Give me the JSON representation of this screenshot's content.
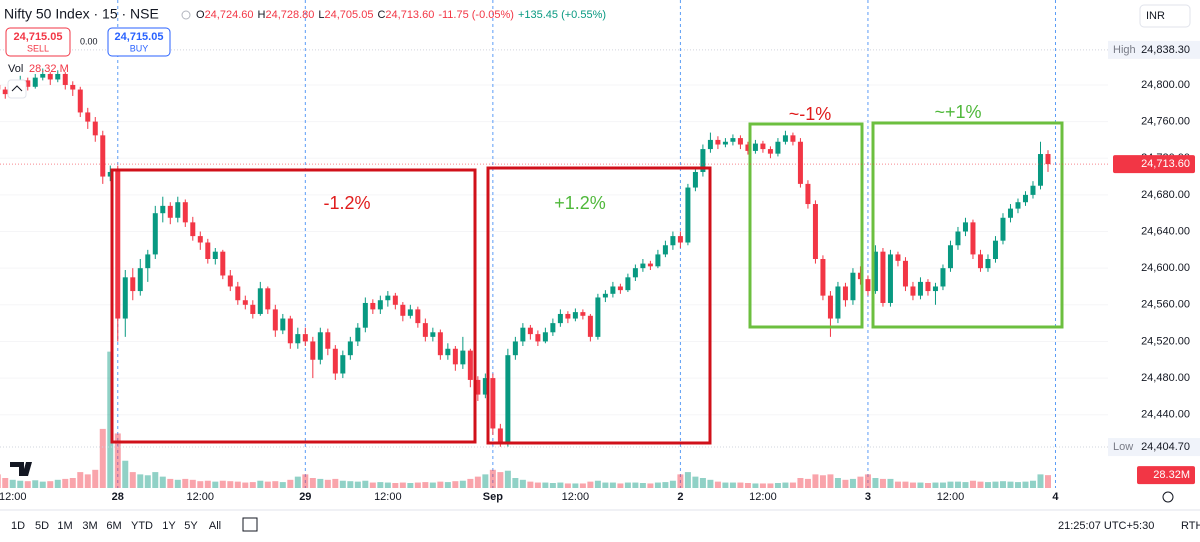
{
  "header": {
    "symbol": "Nifty 50 Index · 15 · NSE",
    "ohlc": [
      {
        "key": "O",
        "value": "24,724.60"
      },
      {
        "key": "H",
        "value": "24,728.80"
      },
      {
        "key": "L",
        "value": "24,705.05"
      },
      {
        "key": "C",
        "value": "24,713.60"
      }
    ],
    "change": "-11.75 (-0.05%)",
    "ext_change": "+135.45 (+0.55%)"
  },
  "trade": {
    "sell_price": "24,715.05",
    "sell_label": "SELL",
    "spread": "0.00",
    "buy_price": "24,715.05",
    "buy_label": "BUY"
  },
  "currency": "INR",
  "volume_legend": {
    "label": "Vol",
    "value": "28.32 M"
  },
  "chart_data": {
    "type": "candlestick",
    "candles": [
      [
        24800,
        24806,
        24790,
        24795,
        30
      ],
      [
        24795,
        24798,
        24785,
        24790,
        22
      ],
      [
        24790,
        24803,
        24788,
        24800,
        18
      ],
      [
        24800,
        24810,
        24796,
        24805,
        16
      ],
      [
        24805,
        24808,
        24794,
        24798,
        15
      ],
      [
        24798,
        24812,
        24796,
        24808,
        17
      ],
      [
        24808,
        24818,
        24805,
        24812,
        14
      ],
      [
        24812,
        24814,
        24800,
        24806,
        15
      ],
      [
        24806,
        24816,
        24803,
        24812,
        18
      ],
      [
        24812,
        24814,
        24795,
        24800,
        20
      ],
      [
        24800,
        24804,
        24788,
        24795,
        22
      ],
      [
        24795,
        24798,
        24765,
        24770,
        35
      ],
      [
        24770,
        24775,
        24752,
        24760,
        30
      ],
      [
        24760,
        24765,
        24738,
        24745,
        40
      ],
      [
        24745,
        24750,
        24692,
        24700,
        130
      ],
      [
        24700,
        24712,
        24695,
        24705,
        300
      ],
      [
        24708,
        24712,
        24520,
        24545,
        120
      ],
      [
        24545,
        24598,
        24525,
        24590,
        60
      ],
      [
        24590,
        24600,
        24565,
        24575,
        35
      ],
      [
        24575,
        24610,
        24570,
        24600,
        30
      ],
      [
        24600,
        24620,
        24585,
        24615,
        28
      ],
      [
        24615,
        24668,
        24610,
        24660,
        35
      ],
      [
        24660,
        24678,
        24650,
        24668,
        25
      ],
      [
        24668,
        24672,
        24648,
        24655,
        20
      ],
      [
        24655,
        24678,
        24650,
        24672,
        18
      ],
      [
        24672,
        24675,
        24645,
        24650,
        20
      ],
      [
        24650,
        24656,
        24630,
        24635,
        18
      ],
      [
        24635,
        24640,
        24620,
        24628,
        15
      ],
      [
        24628,
        24632,
        24605,
        24610,
        16
      ],
      [
        24610,
        24622,
        24604,
        24618,
        14
      ],
      [
        24618,
        24620,
        24588,
        24592,
        16
      ],
      [
        24592,
        24598,
        24575,
        24580,
        15
      ],
      [
        24580,
        24585,
        24560,
        24565,
        14
      ],
      [
        24565,
        24570,
        24555,
        24560,
        12
      ],
      [
        24560,
        24565,
        24545,
        24550,
        13
      ],
      [
        24550,
        24585,
        24548,
        24578,
        16
      ],
      [
        24578,
        24580,
        24550,
        24555,
        14
      ],
      [
        24555,
        24560,
        24525,
        24532,
        15
      ],
      [
        24532,
        24550,
        24528,
        24545,
        13
      ],
      [
        24545,
        24548,
        24512,
        24518,
        18
      ],
      [
        24518,
        24535,
        24512,
        24528,
        25
      ],
      [
        24528,
        24535,
        24515,
        24520,
        30
      ],
      [
        24520,
        24525,
        24480,
        24500,
        22
      ],
      [
        24500,
        24535,
        24495,
        24530,
        20
      ],
      [
        24530,
        24534,
        24505,
        24512,
        18
      ],
      [
        24512,
        24516,
        24478,
        24485,
        20
      ],
      [
        24485,
        24510,
        24480,
        24505,
        16
      ],
      [
        24505,
        24525,
        24500,
        24520,
        15
      ],
      [
        24520,
        24540,
        24515,
        24535,
        14
      ],
      [
        24535,
        24568,
        24530,
        24562,
        16
      ],
      [
        24562,
        24566,
        24550,
        24555,
        12
      ],
      [
        24555,
        24570,
        24550,
        24565,
        13
      ],
      [
        24565,
        24575,
        24558,
        24570,
        12
      ],
      [
        24570,
        24573,
        24555,
        24560,
        11
      ],
      [
        24560,
        24563,
        24542,
        24548,
        12
      ],
      [
        24548,
        24560,
        24545,
        24555,
        11
      ],
      [
        24555,
        24558,
        24535,
        24540,
        12
      ],
      [
        24540,
        24545,
        24520,
        24525,
        13
      ],
      [
        24525,
        24535,
        24520,
        24530,
        12
      ],
      [
        24530,
        24533,
        24500,
        24505,
        14
      ],
      [
        24505,
        24518,
        24500,
        24512,
        13
      ],
      [
        24512,
        24515,
        24488,
        24495,
        15
      ],
      [
        24495,
        24525,
        24490,
        24510,
        16
      ],
      [
        24510,
        24512,
        24470,
        24478,
        20
      ],
      [
        24478,
        24482,
        24455,
        24462,
        25
      ],
      [
        24462,
        24485,
        24458,
        24480,
        30
      ],
      [
        24480,
        24485,
        24418,
        24425,
        40
      ],
      [
        24425,
        24430,
        24405,
        24408,
        35
      ],
      [
        24408,
        24512,
        24405,
        24505,
        38
      ],
      [
        24505,
        24525,
        24500,
        24520,
        22
      ],
      [
        24520,
        24540,
        24515,
        24535,
        18
      ],
      [
        24535,
        24538,
        24522,
        24528,
        14
      ],
      [
        24528,
        24532,
        24515,
        24520,
        12
      ],
      [
        24520,
        24535,
        24518,
        24530,
        12
      ],
      [
        24530,
        24545,
        24526,
        24540,
        11
      ],
      [
        24540,
        24555,
        24536,
        24550,
        12
      ],
      [
        24550,
        24553,
        24540,
        24545,
        10
      ],
      [
        24545,
        24556,
        24542,
        24552,
        10
      ],
      [
        24552,
        24555,
        24544,
        24548,
        10
      ],
      [
        24548,
        24550,
        24520,
        24525,
        14
      ],
      [
        24525,
        24572,
        24522,
        24568,
        16
      ],
      [
        24568,
        24576,
        24563,
        24572,
        12
      ],
      [
        24572,
        24585,
        24568,
        24580,
        12
      ],
      [
        24580,
        24583,
        24572,
        24576,
        10
      ],
      [
        24576,
        24594,
        24574,
        24590,
        12
      ],
      [
        24590,
        24604,
        24586,
        24600,
        12
      ],
      [
        24600,
        24610,
        24596,
        24605,
        11
      ],
      [
        24605,
        24608,
        24598,
        24602,
        10
      ],
      [
        24602,
        24620,
        24600,
        24615,
        12
      ],
      [
        24615,
        24630,
        24612,
        24625,
        13
      ],
      [
        24625,
        24640,
        24620,
        24635,
        16
      ],
      [
        24635,
        24640,
        24622,
        24628,
        30
      ],
      [
        24628,
        24692,
        24625,
        24688,
        35
      ],
      [
        24688,
        24710,
        24684,
        24705,
        25
      ],
      [
        24705,
        24735,
        24700,
        24730,
        22
      ],
      [
        24730,
        24748,
        24726,
        24740,
        18
      ],
      [
        24740,
        24744,
        24730,
        24735,
        14
      ],
      [
        24735,
        24742,
        24732,
        24738,
        12
      ],
      [
        24738,
        24746,
        24734,
        24742,
        12
      ],
      [
        24742,
        24745,
        24730,
        24735,
        12
      ],
      [
        24735,
        24738,
        24724,
        24728,
        11
      ],
      [
        24728,
        24740,
        24725,
        24736,
        10
      ],
      [
        24736,
        24739,
        24726,
        24730,
        10
      ],
      [
        24730,
        24733,
        24720,
        24725,
        10
      ],
      [
        24725,
        24742,
        24722,
        24738,
        11
      ],
      [
        24738,
        24750,
        24735,
        24745,
        12
      ],
      [
        24745,
        24748,
        24734,
        24738,
        12
      ],
      [
        24738,
        24742,
        24688,
        24692,
        22
      ],
      [
        24692,
        24696,
        24665,
        24670,
        20
      ],
      [
        24670,
        24674,
        24605,
        24610,
        30
      ],
      [
        24610,
        24614,
        24565,
        24570,
        28
      ],
      [
        24570,
        24575,
        24525,
        24545,
        30
      ],
      [
        24545,
        24585,
        24540,
        24580,
        22
      ],
      [
        24580,
        24584,
        24558,
        24565,
        18
      ],
      [
        24565,
        24600,
        24560,
        24595,
        20
      ],
      [
        24595,
        24602,
        24582,
        24588,
        25
      ],
      [
        24588,
        24592,
        24570,
        24575,
        30
      ],
      [
        24575,
        24625,
        24572,
        24618,
        22
      ],
      [
        24618,
        24622,
        24558,
        24562,
        20
      ],
      [
        24562,
        24620,
        24558,
        24615,
        20
      ],
      [
        24615,
        24618,
        24602,
        24608,
        14
      ],
      [
        24608,
        24612,
        24575,
        24580,
        14
      ],
      [
        24580,
        24585,
        24565,
        24570,
        12
      ],
      [
        24570,
        24590,
        24566,
        24585,
        12
      ],
      [
        24585,
        24588,
        24570,
        24575,
        11
      ],
      [
        24575,
        24584,
        24560,
        24580,
        12
      ],
      [
        24580,
        24604,
        24576,
        24600,
        12
      ],
      [
        24600,
        24630,
        24596,
        24625,
        14
      ],
      [
        24625,
        24645,
        24620,
        24640,
        14
      ],
      [
        24640,
        24655,
        24635,
        24650,
        13
      ],
      [
        24650,
        24653,
        24610,
        24615,
        16
      ],
      [
        24615,
        24620,
        24596,
        24600,
        14
      ],
      [
        24600,
        24615,
        24596,
        24610,
        13
      ],
      [
        24610,
        24635,
        24606,
        24630,
        14
      ],
      [
        24630,
        24660,
        24626,
        24655,
        15
      ],
      [
        24655,
        24670,
        24650,
        24665,
        14
      ],
      [
        24665,
        24676,
        24660,
        24672,
        13
      ],
      [
        24672,
        24684,
        24668,
        24680,
        14
      ],
      [
        24680,
        24695,
        24676,
        24690,
        16
      ],
      [
        24690,
        24738,
        24686,
        24724.6,
        30
      ],
      [
        24724.6,
        24728.8,
        24705.05,
        24713.6,
        28.32
      ]
    ],
    "xlim": [
      0.3,
      148
    ],
    "xticks": [
      {
        "value": 2,
        "label": "12:00"
      },
      {
        "value": 16,
        "label": "28"
      },
      {
        "value": 27,
        "label": "12:00"
      },
      {
        "value": 41,
        "label": "29"
      },
      {
        "value": 52,
        "label": "12:00"
      },
      {
        "value": 66,
        "label": "Sep"
      },
      {
        "value": 77,
        "label": "12:00"
      },
      {
        "value": 91,
        "label": "2"
      },
      {
        "value": 102,
        "label": "12:00"
      },
      {
        "value": 116,
        "label": "3"
      },
      {
        "value": 127,
        "label": "12:00"
      },
      {
        "value": 141,
        "label": "4"
      }
    ],
    "ylim": [
      24360,
      24860
    ],
    "yticks": [
      {
        "value": 24440,
        "label": "24,440.00"
      },
      {
        "value": 24480,
        "label": "24,480.00"
      },
      {
        "value": 24520,
        "label": "24,520.00"
      },
      {
        "value": 24560,
        "label": "24,560.00"
      },
      {
        "value": 24600,
        "label": "24,600.00"
      },
      {
        "value": 24640,
        "label": "24,640.00"
      },
      {
        "value": 24680,
        "label": "24,680.00"
      },
      {
        "value": 24720,
        "label": "24,720.00"
      },
      {
        "value": 24760,
        "label": "24,760.00"
      },
      {
        "value": 24800,
        "label": "24,800.00"
      }
    ],
    "grid": true,
    "volume_lim": [
      0,
      330
    ],
    "up_color": "#089981",
    "down_color": "#f23645",
    "high": {
      "label": "High",
      "value": 24838.3,
      "value_label": "24,838.30"
    },
    "low": {
      "label": "Low",
      "value": 24404.7,
      "value_label": "24,404.70"
    },
    "last_price": {
      "value": 24713.6,
      "label": "24,713.60"
    },
    "last_volume": {
      "value": 28.32,
      "label": "28.32M"
    },
    "annotations": [
      {
        "text": "-1.2%",
        "color": "#e01b1b",
        "box_color": "#d0101a"
      },
      {
        "text": "+1.2%",
        "color": "#4fb83a",
        "box_color": "#d0101a"
      },
      {
        "text": "~-1%",
        "color": "#e01b1b",
        "box_color": "#6cbf3f"
      },
      {
        "text": "~+1%",
        "color": "#4fb83a",
        "box_color": "#6cbf3f"
      }
    ]
  },
  "range_buttons": [
    "1D",
    "5D",
    "1M",
    "3M",
    "6M",
    "YTD",
    "1Y",
    "5Y",
    "All"
  ],
  "clock": "21:25:07 UTC+5:30",
  "session": "RTH"
}
